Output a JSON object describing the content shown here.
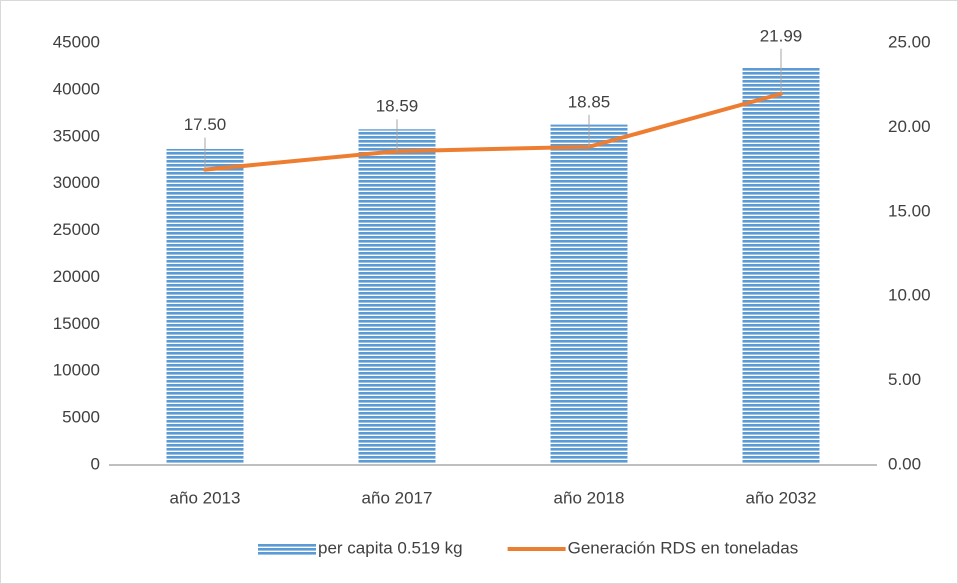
{
  "chart_data": {
    "type": "bar",
    "categories": [
      "año 2013",
      "año 2017",
      "año 2018",
      "año 2032"
    ],
    "series": [
      {
        "name": "per capita 0.519 kg",
        "type": "bar",
        "color": "#5b9bd5",
        "values": [
          33700,
          35800,
          36300,
          42400
        ]
      },
      {
        "name": "Generación RDS en toneladas",
        "type": "line",
        "axis": "y2",
        "color": "#ed7d31",
        "values": [
          17.5,
          18.59,
          18.85,
          21.99
        ],
        "value_labels": [
          "17.50",
          "18.59",
          "18.85",
          "21.99"
        ]
      }
    ],
    "ylim": [
      0,
      45000
    ],
    "yticks": [
      0,
      5000,
      10000,
      15000,
      20000,
      25000,
      30000,
      35000,
      40000,
      45000
    ],
    "y2lim": [
      0,
      25
    ],
    "y2ticks": [
      {
        "value": 0,
        "label": "0.00"
      },
      {
        "value": 5,
        "label": "5.00"
      },
      {
        "value": 10,
        "label": "10.00"
      },
      {
        "value": 15,
        "label": "15.00"
      },
      {
        "value": 20,
        "label": "20.00"
      },
      {
        "value": 25,
        "label": "25.00"
      }
    ],
    "legend": "bottom"
  }
}
